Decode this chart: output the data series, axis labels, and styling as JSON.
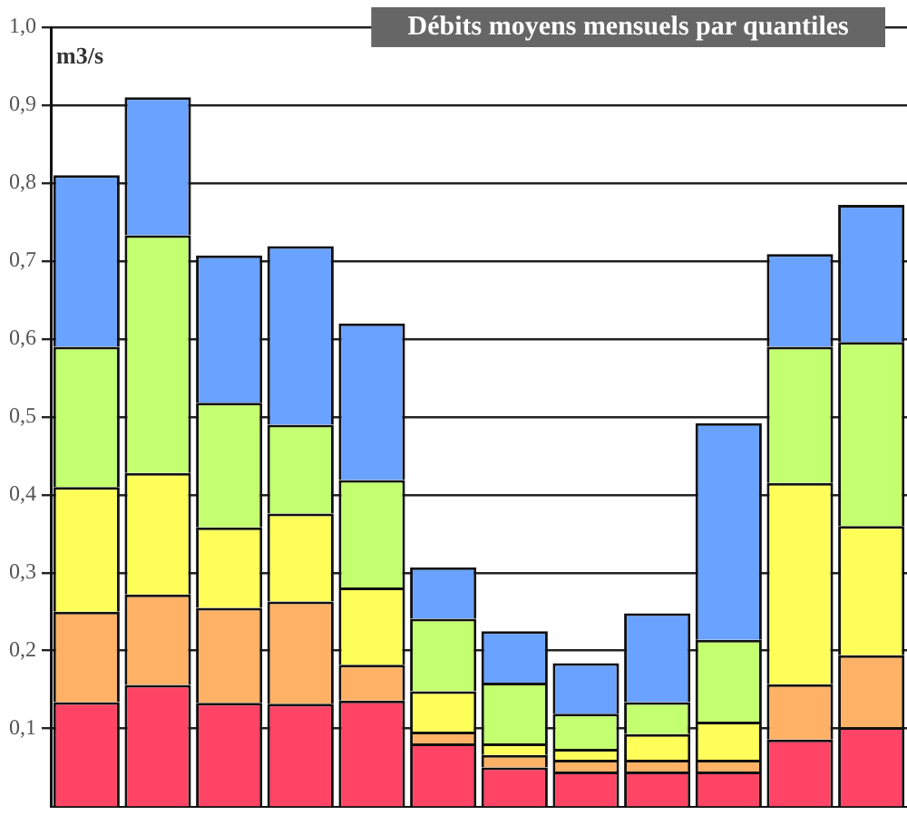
{
  "chart_data": {
    "type": "bar",
    "title": "Débits moyens mensuels par quantiles",
    "ylabel": "m3/s",
    "stacked": true,
    "grid": "y",
    "categories": [
      null,
      null,
      null,
      null,
      null,
      null,
      null,
      null,
      null,
      null,
      null,
      null
    ],
    "series": [
      {
        "color": "#ff4466",
        "values": [
          0.134,
          0.156,
          0.133,
          0.132,
          0.136,
          0.081,
          0.05,
          0.045,
          0.045,
          0.045,
          0.086,
          0.102
        ]
      },
      {
        "color": "#ffb266",
        "values": [
          0.116,
          0.116,
          0.122,
          0.131,
          0.046,
          0.015,
          0.016,
          0.015,
          0.015,
          0.015,
          0.071,
          0.092
        ]
      },
      {
        "color": "#ffff5a",
        "values": [
          0.16,
          0.156,
          0.103,
          0.113,
          0.099,
          0.052,
          0.015,
          0.014,
          0.033,
          0.049,
          0.258,
          0.166
        ]
      },
      {
        "color": "#c4ff70",
        "values": [
          0.18,
          0.305,
          0.16,
          0.114,
          0.138,
          0.093,
          0.078,
          0.045,
          0.041,
          0.105,
          0.175,
          0.236
        ]
      },
      {
        "color": "#6aa2ff",
        "values": [
          0.22,
          0.177,
          0.189,
          0.229,
          0.201,
          0.066,
          0.066,
          0.065,
          0.114,
          0.278,
          0.119,
          0.176
        ]
      }
    ],
    "ylim": [
      0,
      1.0
    ],
    "yticks": [
      {
        "value": 0.1,
        "label": "0,1"
      },
      {
        "value": 0.2,
        "label": "0,2"
      },
      {
        "value": 0.3,
        "label": "0,3"
      },
      {
        "value": 0.4,
        "label": "0,4"
      },
      {
        "value": 0.5,
        "label": "0,5"
      },
      {
        "value": 0.6,
        "label": "0,6"
      },
      {
        "value": 0.7,
        "label": "0,7"
      },
      {
        "value": 0.8,
        "label": "0,8"
      },
      {
        "value": 0.9,
        "label": "0,9"
      },
      {
        "value": 1.0,
        "label": "1,0"
      }
    ],
    "tick_labels": "y",
    "legend": false
  }
}
